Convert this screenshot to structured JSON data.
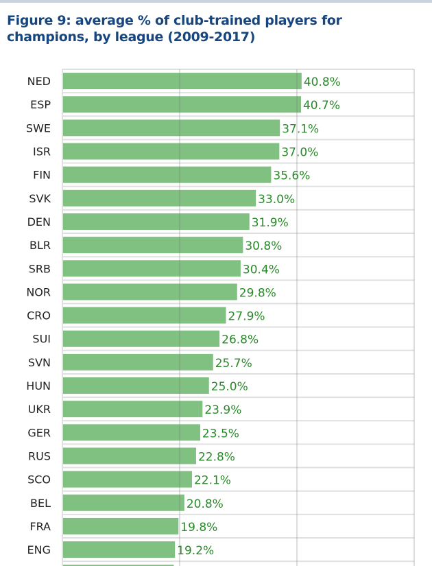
{
  "chart_data": {
    "type": "bar",
    "orientation": "horizontal",
    "title": "Figure 9: average % of club-trained players for champions, by league (2009-2017)",
    "xlabel": "",
    "ylabel": "",
    "xlim": [
      0,
      60
    ],
    "grid": true,
    "categories": [
      "NED",
      "ESP",
      "SWE",
      "ISR",
      "FIN",
      "SVK",
      "DEN",
      "BLR",
      "SRB",
      "NOR",
      "CRO",
      "SUI",
      "SVN",
      "HUN",
      "UKR",
      "GER",
      "RUS",
      "SCO",
      "BEL",
      "FRA",
      "ENG"
    ],
    "values": [
      40.8,
      40.7,
      37.1,
      37.0,
      35.6,
      33.0,
      31.9,
      30.8,
      30.4,
      29.8,
      27.9,
      26.8,
      25.7,
      25.0,
      23.9,
      23.5,
      22.8,
      22.1,
      20.8,
      19.8,
      19.2
    ],
    "labels": [
      "40.8%",
      "40.7%",
      "37.1%",
      "37.0%",
      "35.6%",
      "33.0%",
      "31.9%",
      "30.8%",
      "30.4%",
      "29.8%",
      "27.9%",
      "26.8%",
      "25.7%",
      "25.0%",
      "23.9%",
      "23.5%",
      "22.8%",
      "22.1%",
      "20.8%",
      "19.8%",
      "19.2%"
    ],
    "bar_color": "#80c080",
    "label_color": "#2a8a2a"
  }
}
